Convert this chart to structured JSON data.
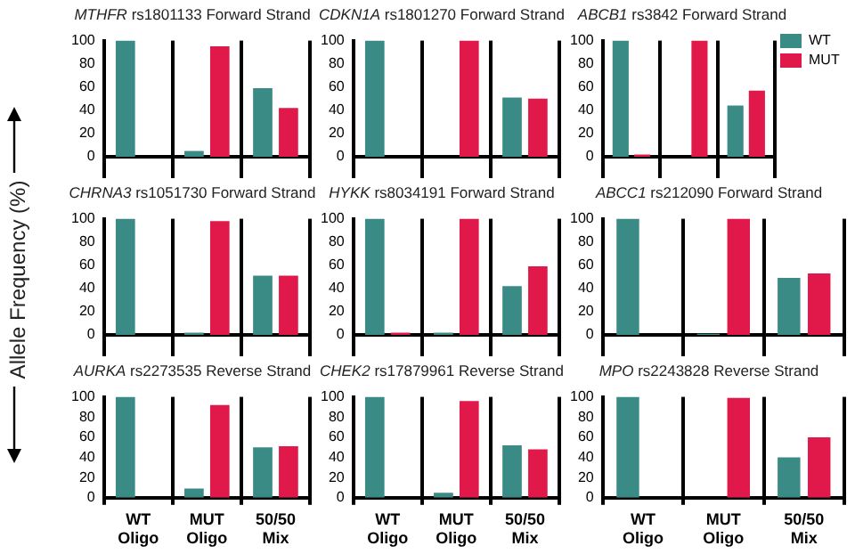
{
  "chart_data": [
    {
      "type": "bar",
      "title": "MTHFR rs1801133 Forward Strand",
      "categories": [
        null,
        null,
        null
      ],
      "series": [
        {
          "color": "#3a8a86",
          "values": [
            100,
            5,
            59
          ]
        },
        {
          "color": "#e0194a",
          "values": [
            0,
            95,
            42
          ]
        }
      ],
      "ylim": [
        0,
        100
      ],
      "yticks": [
        0,
        20,
        40,
        60,
        80,
        100
      ],
      "grid": "x",
      "tick_labels": "y"
    },
    {
      "type": "bar",
      "title": "CDKN1A rs1801270 Forward Strand",
      "categories": [
        null,
        null,
        null
      ],
      "series": [
        {
          "color": "#3a8a86",
          "values": [
            100,
            0,
            51
          ]
        },
        {
          "color": "#e0194a",
          "values": [
            0,
            100,
            50
          ]
        }
      ],
      "ylim": [
        0,
        100
      ],
      "yticks": [
        0,
        20,
        40,
        60,
        80,
        100
      ],
      "grid": "x",
      "tick_labels": "y"
    },
    {
      "type": "bar",
      "title": "ABCB1 rs3842 Forward Strand",
      "categories": [
        null,
        null,
        null
      ],
      "series": [
        {
          "name": "WT",
          "color": "#3a8a86",
          "values": [
            100,
            0,
            44
          ]
        },
        {
          "name": "MUT",
          "color": "#e0194a",
          "values": [
            2,
            100,
            57
          ]
        }
      ],
      "ylim": [
        0,
        100
      ],
      "yticks": [
        0,
        20,
        40,
        60,
        80,
        100
      ],
      "grid": "x",
      "tick_labels": "y",
      "legend": "right"
    },
    {
      "type": "bar",
      "title": "CHRNA3 rs1051730 Forward Strand",
      "ylabel": "Allele Frequency (%)",
      "categories": [
        null,
        null,
        null
      ],
      "series": [
        {
          "color": "#3a8a86",
          "values": [
            100,
            2,
            51
          ]
        },
        {
          "color": "#e0194a",
          "values": [
            0,
            98,
            51
          ]
        }
      ],
      "ylim": [
        0,
        100
      ],
      "yticks": [
        0,
        20,
        40,
        60,
        80,
        100
      ],
      "grid": "x",
      "tick_labels": "y"
    },
    {
      "type": "bar",
      "title": "HYKK rs8034191 Forward Strand",
      "categories": [
        null,
        null,
        null
      ],
      "series": [
        {
          "color": "#3a8a86",
          "values": [
            100,
            2,
            42
          ]
        },
        {
          "color": "#e0194a",
          "values": [
            2,
            100,
            59
          ]
        }
      ],
      "ylim": [
        0,
        100
      ],
      "yticks": [
        0,
        20,
        40,
        60,
        80,
        100
      ],
      "grid": "x",
      "tick_labels": "y"
    },
    {
      "type": "bar",
      "title": "ABCC1 rs212090 Forward Strand",
      "categories": [
        null,
        null,
        null
      ],
      "series": [
        {
          "color": "#3a8a86",
          "values": [
            100,
            1,
            49
          ]
        },
        {
          "color": "#e0194a",
          "values": [
            0,
            100,
            53
          ]
        }
      ],
      "ylim": [
        0,
        100
      ],
      "yticks": [
        0,
        20,
        40,
        60,
        80,
        100
      ],
      "grid": "x",
      "tick_labels": "y"
    },
    {
      "type": "bar",
      "title": "AURKA rs2273535 Reverse Strand",
      "categories": [
        "WT Oligo",
        "MUT Oligo",
        "50/50 Mix"
      ],
      "series": [
        {
          "color": "#3a8a86",
          "values": [
            100,
            9,
            50
          ]
        },
        {
          "color": "#e0194a",
          "values": [
            0,
            92,
            51
          ]
        }
      ],
      "ylim": [
        0,
        100
      ],
      "yticks": [
        0,
        20,
        40,
        60,
        80,
        100
      ],
      "grid": "x"
    },
    {
      "type": "bar",
      "title": "CHEK2 rs17879961 Reverse Strand",
      "categories": [
        "WT Oligo",
        "MUT Oligo",
        "50/50 Mix"
      ],
      "series": [
        {
          "color": "#3a8a86",
          "values": [
            100,
            5,
            52
          ]
        },
        {
          "color": "#e0194a",
          "values": [
            0,
            96,
            48
          ]
        }
      ],
      "ylim": [
        0,
        100
      ],
      "yticks": [
        0,
        20,
        40,
        60,
        80,
        100
      ],
      "grid": "x"
    },
    {
      "type": "bar",
      "title": "MPO rs2243828 Reverse Strand",
      "categories": [
        "WT Oligo",
        "MUT Oligo",
        "50/50 Mix"
      ],
      "series": [
        {
          "color": "#3a8a86",
          "values": [
            100,
            0,
            40
          ]
        },
        {
          "color": "#e0194a",
          "values": [
            0,
            99,
            60
          ]
        }
      ],
      "ylim": [
        0,
        100
      ],
      "yticks": [
        0,
        20,
        40,
        60,
        80,
        100
      ],
      "grid": "x"
    }
  ]
}
